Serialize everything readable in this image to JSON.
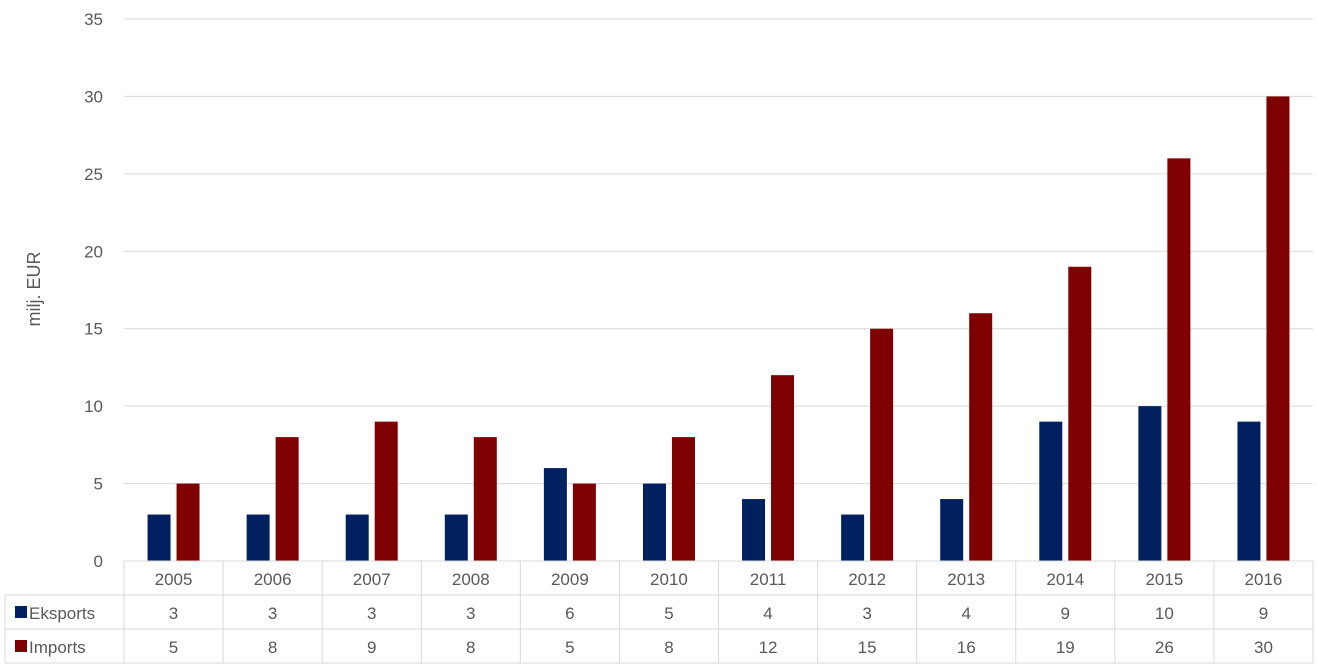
{
  "chart_data": {
    "type": "bar",
    "ylabel": "milj. EUR",
    "ylim": [
      0,
      35
    ],
    "yticks": [
      0,
      5,
      10,
      15,
      20,
      25,
      30,
      35
    ],
    "grid": true,
    "legend": "data-table",
    "categories": [
      "2005",
      "2006",
      "2007",
      "2008",
      "2009",
      "2010",
      "2011",
      "2012",
      "2013",
      "2014",
      "2015",
      "2016"
    ],
    "series": [
      {
        "name": "Eksports",
        "color": "#002060",
        "values": [
          3,
          3,
          3,
          3,
          6,
          5,
          4,
          3,
          4,
          9,
          10,
          9
        ]
      },
      {
        "name": "Imports",
        "color": "#7F0000",
        "values": [
          5,
          8,
          9,
          8,
          5,
          8,
          12,
          15,
          16,
          19,
          26,
          30
        ]
      }
    ]
  }
}
